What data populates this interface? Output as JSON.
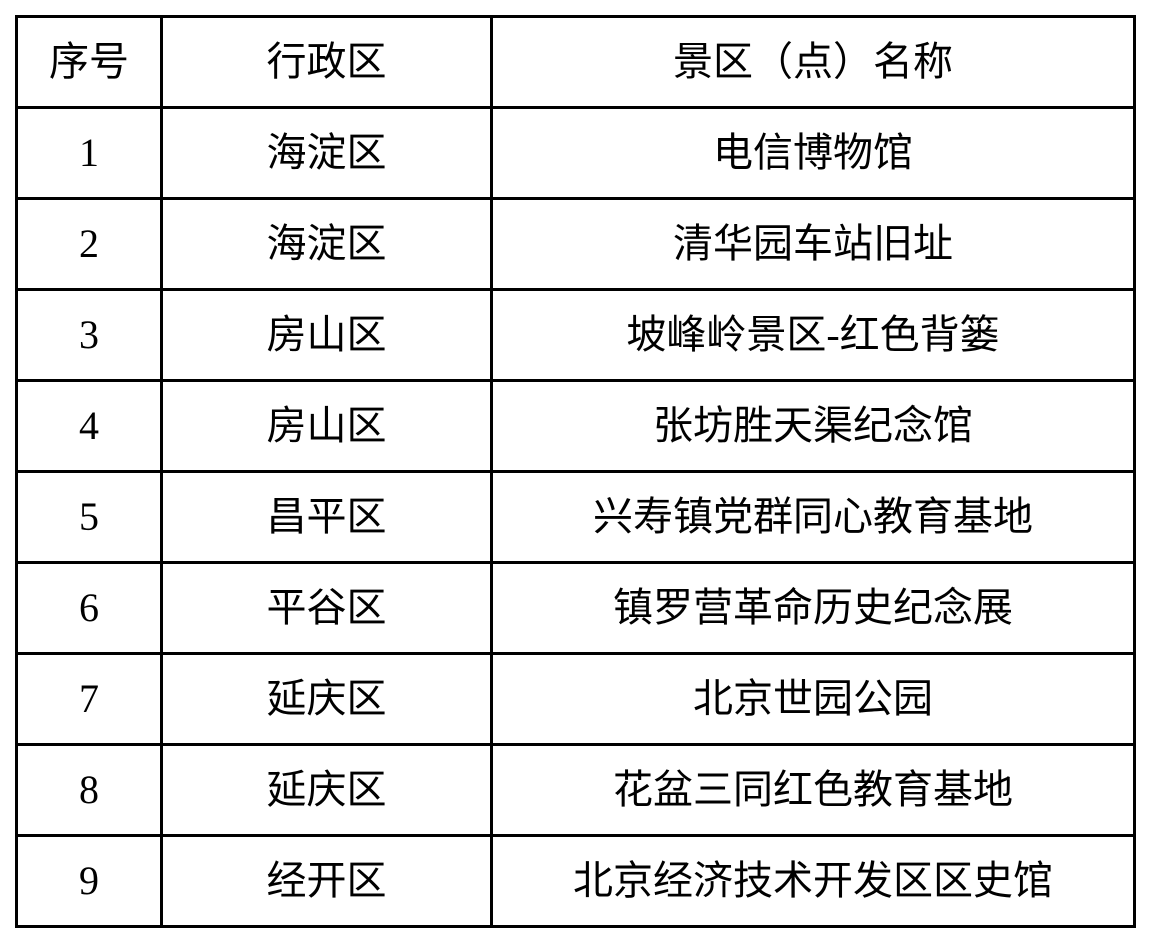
{
  "table": {
    "headers": {
      "serial": "序号",
      "district": "行政区",
      "scenic_name": "景区（点）名称"
    },
    "rows": [
      {
        "no": "1",
        "district": "海淀区",
        "name": "电信博物馆"
      },
      {
        "no": "2",
        "district": "海淀区",
        "name": "清华园车站旧址"
      },
      {
        "no": "3",
        "district": "房山区",
        "name": "坡峰岭景区-红色背篓"
      },
      {
        "no": "4",
        "district": "房山区",
        "name": "张坊胜天渠纪念馆"
      },
      {
        "no": "5",
        "district": "昌平区",
        "name": "兴寿镇党群同心教育基地"
      },
      {
        "no": "6",
        "district": "平谷区",
        "name": "镇罗营革命历史纪念展"
      },
      {
        "no": "7",
        "district": "延庆区",
        "name": "北京世园公园"
      },
      {
        "no": "8",
        "district": "延庆区",
        "name": "花盆三同红色教育基地"
      },
      {
        "no": "9",
        "district": "经开区",
        "name": "北京经济技术开发区区史馆"
      }
    ]
  },
  "colors": {
    "border": "#000000",
    "text": "#000000",
    "background": "#ffffff"
  }
}
